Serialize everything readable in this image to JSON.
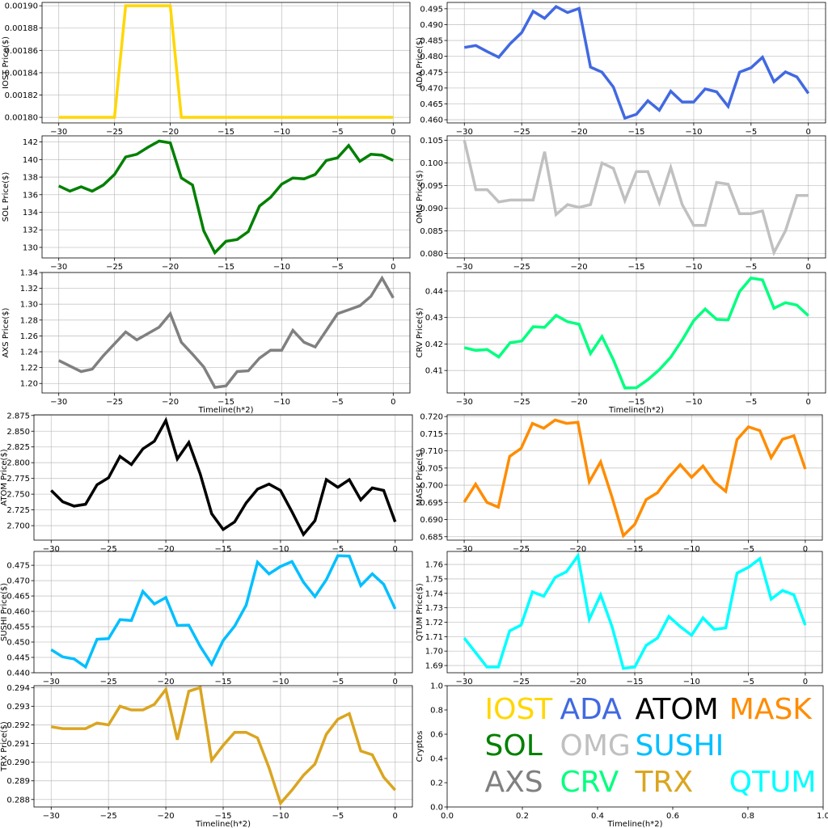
{
  "chart_data": [
    {
      "type": "line",
      "name": "IOST",
      "ylabel": "IOST Price($)",
      "color": "#FFD700",
      "xlabel": "",
      "ylim": [
        0.001795,
        0.001903
      ],
      "yticks": [
        0.0018,
        0.00182,
        0.00184,
        0.00186,
        0.00188,
        0.0019
      ],
      "ytick_labels": [
        "0.00180",
        "0.00182",
        "0.00184",
        "0.00186",
        "0.00188",
        "0.00190"
      ],
      "values": [
        0.0018,
        0.0018,
        0.0018,
        0.0018,
        0.0018,
        0.0018,
        0.0019,
        0.0019,
        0.0019,
        0.0019,
        0.0019,
        0.0018,
        0.0018,
        0.0018,
        0.0018,
        0.0018,
        0.0018,
        0.0018,
        0.0018,
        0.0018,
        0.0018,
        0.0018,
        0.0018,
        0.0018,
        0.0018,
        0.0018,
        0.0018,
        0.0018,
        0.0018,
        0.0018,
        0.0018
      ]
    },
    {
      "type": "line",
      "name": "ADA",
      "ylabel": "ADA  Price($)",
      "color": "#4169E1",
      "xlabel": "",
      "ylim": [
        0.459,
        0.497
      ],
      "yticks": [
        0.46,
        0.465,
        0.47,
        0.475,
        0.48,
        0.485,
        0.49,
        0.495
      ],
      "ytick_labels": [
        "0.460",
        "0.465",
        "0.470",
        "0.475",
        "0.480",
        "0.485",
        "0.490",
        "0.495"
      ],
      "values": [
        0.4828,
        0.4834,
        0.4815,
        0.4797,
        0.484,
        0.4875,
        0.4942,
        0.492,
        0.4957,
        0.4938,
        0.4951,
        0.4766,
        0.475,
        0.4703,
        0.4605,
        0.4617,
        0.466,
        0.463,
        0.469,
        0.4656,
        0.4656,
        0.4697,
        0.4688,
        0.4642,
        0.475,
        0.4764,
        0.4797,
        0.472,
        0.4751,
        0.4735,
        0.4683
      ]
    },
    {
      "type": "line",
      "name": "SOL",
      "ylabel": "SOL Price($)",
      "color": "#008000",
      "xlabel": "",
      "ylim": [
        128.8,
        142.7
      ],
      "yticks": [
        130,
        132,
        134,
        136,
        138,
        140,
        142
      ],
      "ytick_labels": [
        "130",
        "132",
        "134",
        "136",
        "138",
        "140",
        "142"
      ],
      "values": [
        137.0,
        136.4,
        136.9,
        136.4,
        137.1,
        138.3,
        140.3,
        140.6,
        141.4,
        142.1,
        141.9,
        137.9,
        137.1,
        131.9,
        129.4,
        130.7,
        130.9,
        131.8,
        134.7,
        135.7,
        137.2,
        137.9,
        137.8,
        138.3,
        139.9,
        140.2,
        141.6,
        139.8,
        140.6,
        140.5,
        139.9
      ]
    },
    {
      "type": "line",
      "name": "OMG",
      "ylabel": "OMG  Price($)",
      "color": "#C0C0C0",
      "xlabel": "",
      "ylim": [
        0.079,
        0.106
      ],
      "yticks": [
        0.08,
        0.085,
        0.09,
        0.095,
        0.1,
        0.105
      ],
      "ytick_labels": [
        "0.080",
        "0.085",
        "0.090",
        "0.095",
        "0.100",
        "0.105"
      ],
      "values": [
        0.105,
        0.0941,
        0.0941,
        0.0914,
        0.0918,
        0.0918,
        0.0918,
        0.1025,
        0.0886,
        0.0908,
        0.0902,
        0.0908,
        0.1,
        0.0988,
        0.0917,
        0.0981,
        0.0981,
        0.0912,
        0.099,
        0.0908,
        0.0862,
        0.0862,
        0.0957,
        0.0953,
        0.0888,
        0.0888,
        0.0894,
        0.0802,
        0.085,
        0.0928,
        0.0928
      ]
    },
    {
      "type": "line",
      "name": "AXS",
      "ylabel": "AXS Price($)",
      "color": "#808080",
      "xlabel": "Timeline(h*2)",
      "ylim": [
        1.188,
        1.34
      ],
      "yticks": [
        1.2,
        1.22,
        1.24,
        1.26,
        1.28,
        1.3,
        1.32,
        1.34
      ],
      "ytick_labels": [
        "1.20",
        "1.22",
        "1.24",
        "1.26",
        "1.28",
        "1.30",
        "1.32",
        "1.34"
      ],
      "values": [
        1.229,
        1.222,
        1.215,
        1.218,
        1.235,
        1.25,
        1.265,
        1.255,
        1.263,
        1.271,
        1.288,
        1.252,
        1.237,
        1.221,
        1.195,
        1.197,
        1.215,
        1.216,
        1.232,
        1.242,
        1.242,
        1.267,
        1.252,
        1.246,
        1.267,
        1.288,
        1.293,
        1.298,
        1.31,
        1.333,
        1.308
      ]
    },
    {
      "type": "line",
      "name": "CRV",
      "ylabel": "CRV  Price($)",
      "color": "#00FF7F",
      "xlabel": "Timeline(h*2)",
      "ylim": [
        0.4015,
        0.447
      ],
      "yticks": [
        0.41,
        0.42,
        0.43,
        0.44
      ],
      "ytick_labels": [
        "0.41",
        "0.42",
        "0.43",
        "0.44"
      ],
      "values": [
        0.4186,
        0.4176,
        0.4179,
        0.4151,
        0.4205,
        0.4211,
        0.4265,
        0.4263,
        0.4308,
        0.4284,
        0.4275,
        0.4164,
        0.4228,
        0.414,
        0.4034,
        0.4035,
        0.4065,
        0.4103,
        0.415,
        0.4215,
        0.4288,
        0.4332,
        0.4293,
        0.4291,
        0.4398,
        0.4449,
        0.4442,
        0.4335,
        0.4356,
        0.4347,
        0.4307
      ]
    },
    {
      "type": "line",
      "name": "ATOM",
      "ylabel": "ATOM  Price($)",
      "color": "#000000",
      "xlabel": "",
      "ylim": [
        2.677,
        2.876
      ],
      "yticks": [
        2.7,
        2.725,
        2.75,
        2.775,
        2.8,
        2.825,
        2.85,
        2.875
      ],
      "ytick_labels": [
        "2.700",
        "2.725",
        "2.750",
        "2.775",
        "2.800",
        "2.825",
        "2.850",
        "2.875"
      ],
      "values": [
        2.756,
        2.738,
        2.731,
        2.734,
        2.765,
        2.776,
        2.81,
        2.797,
        2.822,
        2.834,
        2.867,
        2.806,
        2.832,
        2.782,
        2.719,
        2.694,
        2.706,
        2.736,
        2.758,
        2.766,
        2.756,
        2.722,
        2.686,
        2.708,
        2.773,
        2.761,
        2.773,
        2.741,
        2.76,
        2.756,
        2.706
      ]
    },
    {
      "type": "line",
      "name": "MASK",
      "ylabel": "MASK  Price($)",
      "color": "#FF8C00",
      "xlabel": "",
      "ylim": [
        0.684,
        0.7205
      ],
      "yticks": [
        0.685,
        0.69,
        0.695,
        0.7,
        0.705,
        0.71,
        0.715,
        0.72
      ],
      "ytick_labels": [
        "0.685",
        "0.690",
        "0.695",
        "0.700",
        "0.705",
        "0.710",
        "0.715",
        "0.720"
      ],
      "values": [
        0.6951,
        0.7003,
        0.695,
        0.6936,
        0.7084,
        0.7107,
        0.718,
        0.7166,
        0.719,
        0.718,
        0.7183,
        0.701,
        0.7068,
        0.6965,
        0.6853,
        0.6886,
        0.6958,
        0.6978,
        0.7023,
        0.706,
        0.7023,
        0.7056,
        0.701,
        0.6982,
        0.7133,
        0.717,
        0.7159,
        0.708,
        0.7134,
        0.7144,
        0.7047
      ]
    },
    {
      "type": "line",
      "name": "SUSHI",
      "ylabel": "SUSHI  Price($)",
      "color": "#00BFFF",
      "xlabel": "",
      "ylim": [
        0.44,
        0.4795
      ],
      "yticks": [
        0.44,
        0.445,
        0.45,
        0.455,
        0.46,
        0.465,
        0.47,
        0.475
      ],
      "ytick_labels": [
        "0.440",
        "0.445",
        "0.450",
        "0.455",
        "0.460",
        "0.465",
        "0.470",
        "0.475"
      ],
      "values": [
        0.4475,
        0.4452,
        0.4445,
        0.4419,
        0.4509,
        0.4511,
        0.4573,
        0.457,
        0.4665,
        0.4624,
        0.4645,
        0.4554,
        0.4555,
        0.4486,
        0.4428,
        0.4505,
        0.4552,
        0.462,
        0.476,
        0.4722,
        0.4746,
        0.4762,
        0.4695,
        0.4648,
        0.4703,
        0.4781,
        0.478,
        0.4684,
        0.4722,
        0.4688,
        0.4608
      ]
    },
    {
      "type": "line",
      "name": "QTUM",
      "ylabel": "QTUM Price($)",
      "color": "#00FFFF",
      "xlabel": "",
      "ylim": [
        1.685,
        1.769
      ],
      "yticks": [
        1.69,
        1.7,
        1.71,
        1.72,
        1.73,
        1.74,
        1.75,
        1.76
      ],
      "ytick_labels": [
        "1.69",
        "1.70",
        "1.71",
        "1.72",
        "1.73",
        "1.74",
        "1.75",
        "1.76"
      ],
      "values": [
        1.709,
        1.699,
        1.689,
        1.689,
        1.714,
        1.718,
        1.741,
        1.738,
        1.751,
        1.755,
        1.766,
        1.722,
        1.739,
        1.717,
        1.688,
        1.689,
        1.704,
        1.709,
        1.724,
        1.717,
        1.711,
        1.723,
        1.715,
        1.716,
        1.754,
        1.758,
        1.764,
        1.736,
        1.742,
        1.739,
        1.718
      ]
    },
    {
      "type": "line",
      "name": "TRX",
      "ylabel": "TRX Price($)",
      "color": "#DAA520",
      "xlabel": "Timeline(h*2)",
      "ylim": [
        0.2876,
        0.2941
      ],
      "yticks": [
        0.288,
        0.289,
        0.29,
        0.291,
        0.292,
        0.293,
        0.294
      ],
      "ytick_labels": [
        "0.288",
        "0.289",
        "0.290",
        "0.291",
        "0.292",
        "0.293",
        "0.294"
      ],
      "values": [
        0.2919,
        0.2918,
        0.2918,
        0.2918,
        0.2921,
        0.292,
        0.293,
        0.2928,
        0.2928,
        0.2931,
        0.2939,
        0.2912,
        0.2938,
        0.294,
        0.2901,
        0.2909,
        0.2916,
        0.2916,
        0.2913,
        0.2897,
        0.2878,
        0.2885,
        0.2893,
        0.2899,
        0.2915,
        0.2923,
        0.2926,
        0.2906,
        0.2904,
        0.2892,
        0.2885
      ]
    },
    {
      "type": "legend",
      "name": "legend",
      "ylabel": "Cryptos",
      "xlabel": "Timeline(h*2)",
      "xlim": [
        0,
        1
      ],
      "ylim": [
        0,
        1
      ],
      "xticks": [
        0,
        0.2,
        0.4,
        0.6,
        0.8,
        1
      ],
      "xtick_labels": [
        "0.0",
        "0.2",
        "0.4",
        "0.6",
        "0.8",
        "1.0"
      ],
      "yticks": [
        0,
        0.2,
        0.4,
        0.6,
        0.8,
        1
      ],
      "ytick_labels": [
        "0.0",
        "0.2",
        "0.4",
        "0.6",
        "0.8",
        "1.0"
      ],
      "entries": [
        {
          "label": "IOST",
          "color": "#FFD700",
          "x": 0.1,
          "y": 0.7
        },
        {
          "label": "ADA",
          "color": "#4169E1",
          "x": 0.3,
          "y": 0.7
        },
        {
          "label": "ATOM",
          "color": "#000000",
          "x": 0.5,
          "y": 0.7
        },
        {
          "label": "MASK",
          "color": "#FF8C00",
          "x": 0.75,
          "y": 0.7
        },
        {
          "label": "SOL",
          "color": "#008000",
          "x": 0.1,
          "y": 0.4
        },
        {
          "label": "OMG",
          "color": "#C0C0C0",
          "x": 0.3,
          "y": 0.4
        },
        {
          "label": "SUSHI",
          "color": "#00BFFF",
          "x": 0.5,
          "y": 0.4
        },
        {
          "label": "AXS",
          "color": "#808080",
          "x": 0.1,
          "y": 0.1
        },
        {
          "label": "CRV",
          "color": "#00FF7F",
          "x": 0.3,
          "y": 0.1
        },
        {
          "label": "TRX",
          "color": "#DAA520",
          "x": 0.5,
          "y": 0.1
        },
        {
          "label": "QTUM",
          "color": "#00FFFF",
          "x": 0.75,
          "y": 0.1
        }
      ]
    }
  ],
  "x_axis": {
    "xlim": [
      -31.5,
      1.5
    ],
    "ticks": [
      -30,
      -25,
      -20,
      -15,
      -10,
      -5,
      0
    ],
    "tick_labels": [
      "−30",
      "−25",
      "−20",
      "−15",
      "−10",
      "−5",
      "0"
    ],
    "x_values_start": -30
  }
}
